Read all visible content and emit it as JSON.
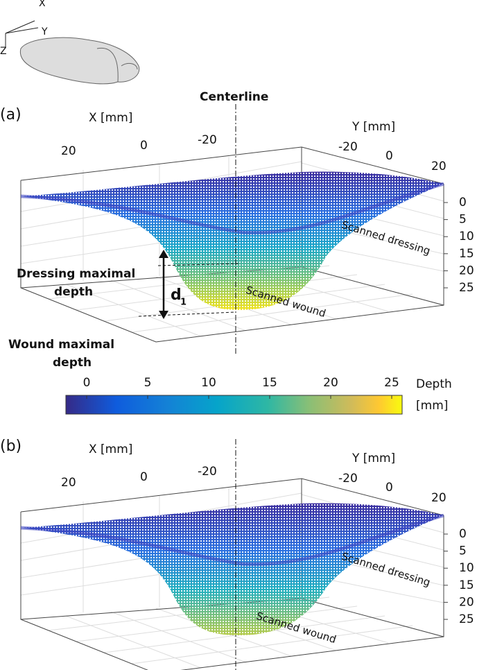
{
  "figure": {
    "axes_icon": {
      "x": "X",
      "y": "Y",
      "z": "Z"
    },
    "centerline": "Centerline",
    "panels": [
      {
        "label": "(a)",
        "x_axis": "X [mm]",
        "y_axis": "Y [mm]",
        "x_ticks": [
          20,
          0,
          -20
        ],
        "y_ticks": [
          -20,
          0,
          20
        ],
        "z_ticks": [
          0,
          5,
          10,
          15,
          20,
          25
        ],
        "dressing_label": "Scanned dressing",
        "wound_label": "Scanned wound"
      },
      {
        "label": "(b)",
        "x_axis": "X [mm]",
        "y_axis": "Y [mm]",
        "x_ticks": [
          20,
          0,
          -20
        ],
        "y_ticks": [
          -20,
          0,
          20
        ],
        "z_ticks": [
          0,
          5,
          10,
          15,
          20,
          25
        ],
        "dressing_label": "Scanned dressing",
        "wound_label": "Scanned wound"
      }
    ],
    "depth_annotation": {
      "dressing": [
        "Dressing  maximal",
        "depth"
      ],
      "wound": [
        "Wound maximal",
        "depth"
      ],
      "symbol": "d",
      "subscript": "1"
    },
    "colorbar": {
      "ticks": [
        0,
        5,
        10,
        15,
        20,
        25
      ],
      "label": [
        "Depth",
        "[mm]"
      ]
    }
  }
}
